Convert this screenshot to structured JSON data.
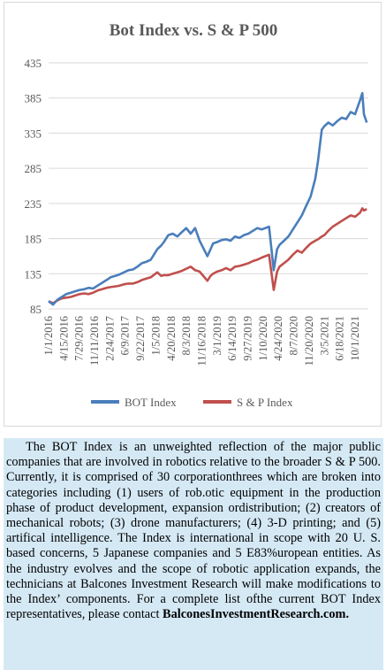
{
  "chart_data": {
    "type": "line",
    "title": "Bot Index vs. S & P 500",
    "ylim": [
      85,
      435
    ],
    "yticks": [
      85,
      135,
      185,
      235,
      285,
      335,
      385,
      435
    ],
    "x_tick_labels": [
      "1/1/2016",
      "4/15/2016",
      "7/29/2016",
      "11/11/2016",
      "2/24/2017",
      "6/9/2017",
      "9/22/2017",
      "1/5/2018",
      "4/20/2018",
      "8/3/2018",
      "11/16/2018",
      "3/1/2019",
      "6/14/2019",
      "9/27/2019",
      "1/10/2020",
      "4/24/2020",
      "8/7/2020",
      "11/20/2020",
      "3/5/2021",
      "6/18/2021",
      "10/1/2021"
    ],
    "legend_position": "bottom",
    "grid": "horizontal",
    "x_dates": [
      "2016-01-01",
      "2016-02-01",
      "2016-03-01",
      "2016-04-01",
      "2016-05-01",
      "2016-06-01",
      "2016-07-01",
      "2016-08-01",
      "2016-09-01",
      "2016-10-01",
      "2016-11-01",
      "2016-12-01",
      "2017-01-01",
      "2017-02-01",
      "2017-03-01",
      "2017-04-01",
      "2017-05-01",
      "2017-06-01",
      "2017-07-01",
      "2017-08-01",
      "2017-09-01",
      "2017-10-01",
      "2017-11-01",
      "2017-12-01",
      "2018-01-15",
      "2018-02-10",
      "2018-03-01",
      "2018-04-01",
      "2018-05-01",
      "2018-06-01",
      "2018-07-01",
      "2018-08-01",
      "2018-09-01",
      "2018-10-01",
      "2018-11-01",
      "2018-12-24",
      "2019-01-15",
      "2019-02-01",
      "2019-03-01",
      "2019-04-01",
      "2019-05-01",
      "2019-06-01",
      "2019-07-01",
      "2019-08-01",
      "2019-09-01",
      "2019-10-01",
      "2019-11-01",
      "2019-12-01",
      "2020-01-01",
      "2020-02-20",
      "2020-03-23",
      "2020-04-15",
      "2020-05-01",
      "2020-06-01",
      "2020-07-01",
      "2020-08-01",
      "2020-09-01",
      "2020-10-01",
      "2020-11-01",
      "2020-12-01",
      "2021-01-01",
      "2021-01-20",
      "2021-02-15",
      "2021-03-05",
      "2021-04-01",
      "2021-05-01",
      "2021-06-01",
      "2021-07-01",
      "2021-08-01",
      "2021-09-01",
      "2021-10-01",
      "2021-11-05",
      "2021-11-20",
      "2021-12-01",
      "2021-12-20"
    ],
    "series": [
      {
        "name": "BOT Index",
        "color": "#4a7ebb",
        "values": [
          96,
          91,
          98,
          102,
          106,
          108,
          110,
          112,
          113,
          115,
          114,
          118,
          122,
          126,
          130,
          132,
          134,
          137,
          140,
          141,
          145,
          150,
          152,
          155,
          170,
          175,
          180,
          190,
          192,
          188,
          194,
          200,
          192,
          200,
          182,
          160,
          170,
          178,
          180,
          183,
          184,
          182,
          188,
          186,
          190,
          192,
          196,
          200,
          198,
          202,
          140,
          170,
          176,
          182,
          188,
          198,
          208,
          218,
          232,
          245,
          270,
          295,
          340,
          345,
          350,
          346,
          352,
          357,
          355,
          365,
          362,
          382,
          392,
          362,
          350
        ]
      },
      {
        "name": "S & P Index",
        "color": "#c0504d",
        "values": [
          96,
          93,
          97,
          100,
          101,
          102,
          104,
          106,
          107,
          106,
          108,
          111,
          113,
          115,
          116,
          117,
          118,
          120,
          121,
          121,
          123,
          126,
          128,
          130,
          137,
          132,
          133,
          133,
          135,
          137,
          139,
          142,
          145,
          140,
          138,
          125,
          132,
          135,
          138,
          140,
          143,
          140,
          145,
          146,
          148,
          150,
          153,
          155,
          158,
          162,
          112,
          138,
          145,
          150,
          155,
          162,
          168,
          165,
          172,
          178,
          182,
          184,
          188,
          190,
          196,
          202,
          206,
          210,
          214,
          218,
          216,
          222,
          228,
          225,
          227
        ]
      }
    ]
  },
  "caption": {
    "text": "The BOT Index is an unweighted reflection of the major public companies that are involved in robotics relative to the broader S & P 500. Currently, it is comprised of 30 corporationthrees which are broken into categories including (1) users of rob.otic equipment in the production phase of product development, expansion ordistribution; (2) creators of mechanical robots; (3) drone manufacturers; (4) 3-D printing; and (5) artifical intelligence. The Index is international in scope with 20 U. S. based concerns, 5 Japanese companies and 5 E83%uropean entities. As the industry evolves and the scope of robotic application expands, the technicians at Balcones Investment Research will make modifications to the Index’ components. For a complete list ofthe current BOT Index representatives, please contact",
    "website": "BalconesInvestmentResearch.com."
  }
}
